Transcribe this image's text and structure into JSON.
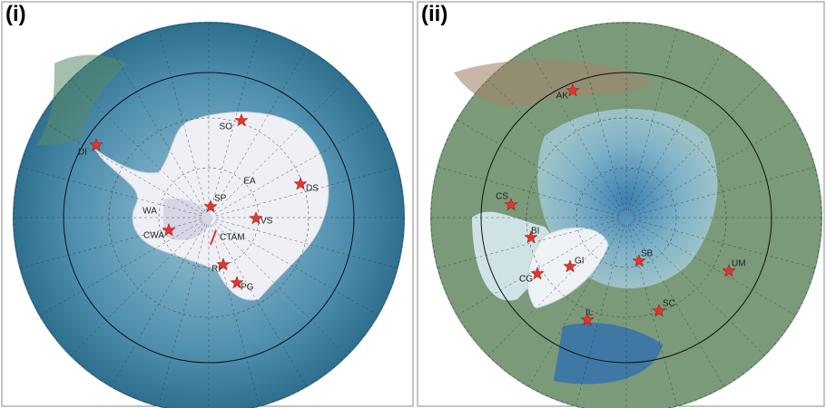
{
  "panels": [
    {
      "label": "(i)",
      "sites": [
        "SO",
        "DI",
        "EA",
        "SP",
        "DS",
        "WA",
        "CWA",
        "VS",
        "CTAM",
        "RI",
        "PG"
      ]
    },
    {
      "label": "(ii)",
      "sites": [
        "AK",
        "CS",
        "BI",
        "GI",
        "CG",
        "SB",
        "UM",
        "SC",
        "IL"
      ]
    }
  ]
}
